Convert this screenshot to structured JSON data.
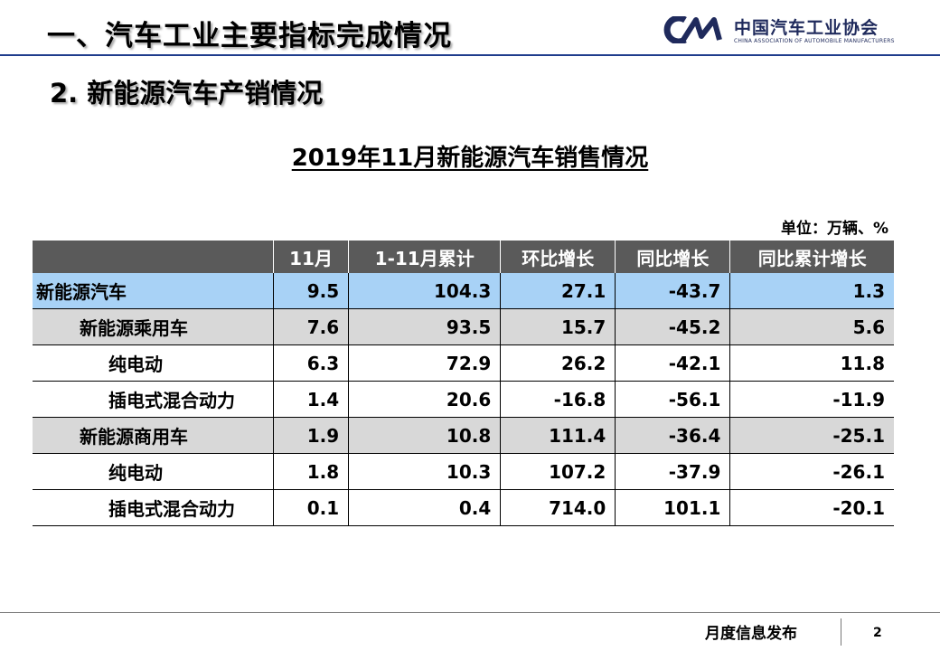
{
  "header": {
    "title": "一、汽车工业主要指标完成情况",
    "logo": {
      "cn": "中国汽车工业协会",
      "en": "CHINA ASSOCIATION OF AUTOMOBILE MANUFACTURERS",
      "color": "#1f2a5c"
    }
  },
  "section": {
    "title": "2. 新能源汽车产销情况"
  },
  "table_block": {
    "title": "2019年11月新能源汽车销售情况",
    "unit": "单位：万辆、%",
    "columns": [
      "",
      "11月",
      "1-11月累计",
      "环比增长",
      "同比增长",
      "同比累计增长"
    ],
    "rows": [
      {
        "name": "新能源汽车",
        "level": 0,
        "cells": [
          "9.5",
          "104.3",
          "27.1",
          "-43.7",
          "1.3"
        ]
      },
      {
        "name": "新能源乘用车",
        "level": 1,
        "cells": [
          "7.6",
          "93.5",
          "15.7",
          "-45.2",
          "5.6"
        ]
      },
      {
        "name": "纯电动",
        "level": 2,
        "cells": [
          "6.3",
          "72.9",
          "26.2",
          "-42.1",
          "11.8"
        ]
      },
      {
        "name": "插电式混合动力",
        "level": 2,
        "cells": [
          "1.4",
          "20.6",
          "-16.8",
          "-56.1",
          "-11.9"
        ]
      },
      {
        "name": "新能源商用车",
        "level": 1,
        "cells": [
          "1.9",
          "10.8",
          "111.4",
          "-36.4",
          "-25.1"
        ]
      },
      {
        "name": "纯电动",
        "level": 2,
        "cells": [
          "1.8",
          "10.3",
          "107.2",
          "-37.9",
          "-26.1"
        ]
      },
      {
        "name": "插电式混合动力",
        "level": 2,
        "cells": [
          "0.1",
          "0.4",
          "714.0",
          "101.1",
          "-20.1"
        ]
      }
    ],
    "colors": {
      "header_bg": "#5a5a5a",
      "total_row_bg": "#a8d2f6",
      "subtotal_row_bg": "#d8d8d8"
    }
  },
  "footer": {
    "text": "月度信息发布",
    "page": "2"
  }
}
